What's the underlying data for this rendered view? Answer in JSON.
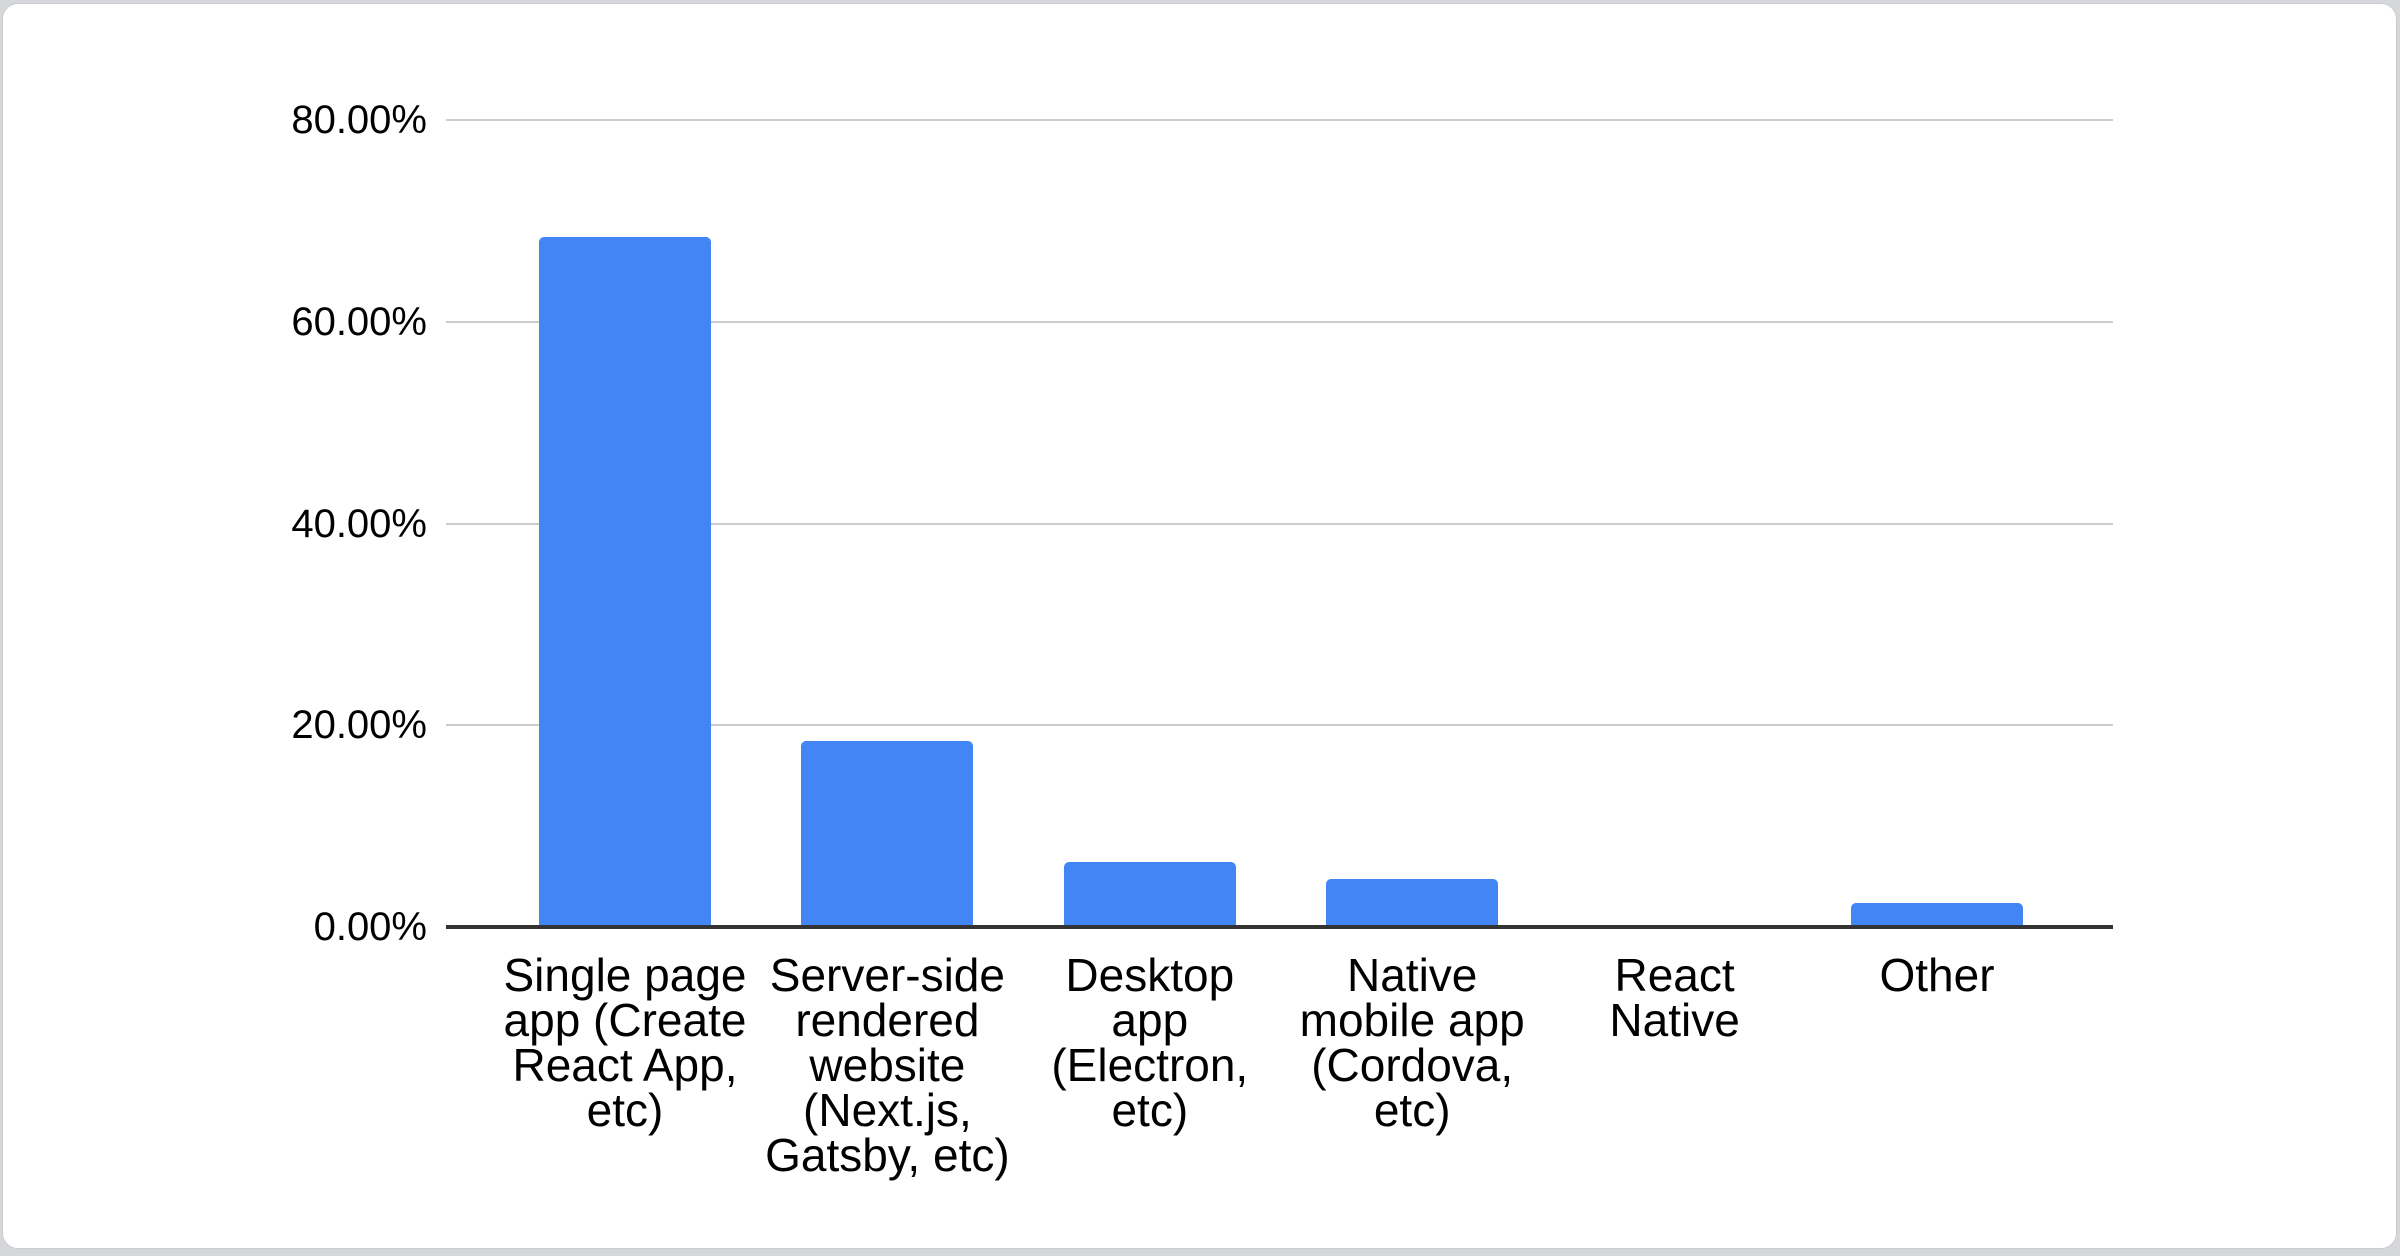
{
  "page": {
    "background_color": "#d5d7da",
    "card_background": "#ffffff",
    "card_border_color": "#caccd0"
  },
  "chart_data": {
    "type": "bar",
    "title": "",
    "xlabel": "",
    "ylabel": "",
    "categories": [
      "Single page app (Create React App, etc)",
      "Server-side rendered website (Next.js, Gatsby, etc)",
      "Desktop app (Electron, etc)",
      "Native mobile app (Cordova, etc)",
      "React Native",
      "Other"
    ],
    "category_label_lines": [
      [
        "Single page",
        "app (Create",
        "React App,",
        "etc)"
      ],
      [
        "Server-side",
        "rendered",
        "website",
        "(Next.js,",
        "Gatsby, etc)"
      ],
      [
        "Desktop",
        "app",
        "(Electron,",
        "etc)"
      ],
      [
        "Native",
        "mobile app",
        "(Cordova,",
        "etc)"
      ],
      [
        "React",
        "Native"
      ],
      [
        "Other"
      ]
    ],
    "values": [
      68.4,
      18.4,
      6.4,
      4.8,
      0,
      2.4
    ],
    "unit": "%",
    "ylim": [
      0,
      80
    ],
    "y_ticks": [
      {
        "label": "80.00%",
        "value": 80
      },
      {
        "label": "60.00%",
        "value": 60
      },
      {
        "label": "40.00%",
        "value": 40
      },
      {
        "label": "20.00%",
        "value": 20
      },
      {
        "label": "0.00%",
        "value": 0
      }
    ],
    "grid": true,
    "legend": "none",
    "bar_color": "#4285f4",
    "gridline_color": "#cccccc",
    "axis_line_color": "#333333",
    "label_color": "#000000"
  }
}
